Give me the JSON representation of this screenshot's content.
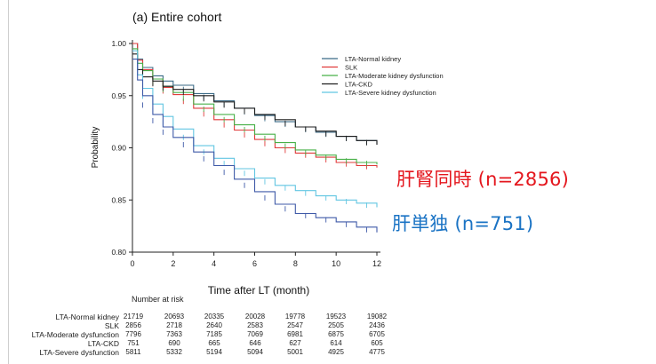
{
  "chart_data": {
    "type": "line",
    "subtype": "kaplan-meier",
    "title": "(a) Entire cohort",
    "xlabel": "Time after LT (month)",
    "ylabel": "Probability",
    "xlim": [
      0,
      12
    ],
    "ylim": [
      0.8,
      1.0
    ],
    "xticks": [
      "0",
      "2",
      "4",
      "6",
      "8",
      "10",
      "12"
    ],
    "yticks": [
      "0.80",
      "0.85",
      "0.90",
      "0.95",
      "1.00"
    ],
    "legend_position": "top-right",
    "series": [
      {
        "name": "LTA-Normal kidney",
        "color": "#3a6a86",
        "x": [
          0,
          0.25,
          0.5,
          1,
          1.5,
          2,
          3,
          4,
          5,
          6,
          7,
          8,
          9,
          10,
          11,
          12
        ],
        "y": [
          1.0,
          0.985,
          0.977,
          0.969,
          0.964,
          0.96,
          0.952,
          0.945,
          0.938,
          0.931,
          0.925,
          0.92,
          0.915,
          0.911,
          0.907,
          0.903
        ]
      },
      {
        "name": "SLK",
        "color": "#e03a3a",
        "x": [
          0,
          0.25,
          0.5,
          1,
          1.5,
          2,
          3,
          4,
          5,
          6,
          7,
          8,
          9,
          10,
          11,
          12
        ],
        "y": [
          1.0,
          0.984,
          0.975,
          0.966,
          0.958,
          0.951,
          0.938,
          0.927,
          0.917,
          0.908,
          0.9,
          0.895,
          0.891,
          0.886,
          0.883,
          0.881
        ]
      },
      {
        "name": "LTA-Moderate kidney dysfunction",
        "color": "#48b048",
        "x": [
          0,
          0.25,
          0.5,
          1,
          1.5,
          2,
          3,
          4,
          5,
          6,
          7,
          8,
          9,
          10,
          11,
          12
        ],
        "y": [
          0.995,
          0.981,
          0.974,
          0.966,
          0.959,
          0.953,
          0.942,
          0.932,
          0.922,
          0.913,
          0.905,
          0.898,
          0.893,
          0.889,
          0.886,
          0.884
        ]
      },
      {
        "name": "LTA-CKD",
        "color": "#1f1f1f",
        "x": [
          0,
          0.25,
          0.5,
          1,
          1.5,
          2,
          3,
          4,
          5,
          6,
          7,
          8,
          9,
          10,
          11,
          12
        ],
        "y": [
          0.99,
          0.975,
          0.968,
          0.964,
          0.959,
          0.956,
          0.95,
          0.944,
          0.938,
          0.932,
          0.927,
          0.92,
          0.916,
          0.911,
          0.907,
          0.903
        ]
      },
      {
        "name": "LTA-Severe kidney dysfunction",
        "color": "#62c6e2",
        "x": [
          0,
          0.25,
          0.5,
          1,
          1.5,
          2,
          3,
          4,
          5,
          6,
          7,
          8,
          9,
          10,
          11,
          12
        ],
        "y": [
          0.993,
          0.97,
          0.957,
          0.942,
          0.93,
          0.918,
          0.902,
          0.89,
          0.88,
          0.871,
          0.864,
          0.859,
          0.854,
          0.85,
          0.847,
          0.843
        ]
      },
      {
        "name": "",
        "color": "#3f5aa8",
        "x": [
          0,
          0.25,
          0.5,
          1,
          1.5,
          2,
          3,
          4,
          5,
          6,
          7,
          8,
          9,
          10,
          11,
          12
        ],
        "y": [
          0.985,
          0.965,
          0.95,
          0.932,
          0.92,
          0.91,
          0.896,
          0.883,
          0.87,
          0.858,
          0.846,
          0.837,
          0.833,
          0.829,
          0.824,
          0.819
        ]
      }
    ]
  },
  "risk_table": {
    "header": "Number at risk",
    "rows": [
      {
        "label": "LTA-Normal kidney",
        "values": [
          "21719",
          "20693",
          "20335",
          "20028",
          "19778",
          "19523",
          "19082"
        ]
      },
      {
        "label": "SLK",
        "values": [
          "2856",
          "2718",
          "2640",
          "2583",
          "2547",
          "2505",
          "2436"
        ]
      },
      {
        "label": "LTA-Moderate dysfunction",
        "values": [
          "7796",
          "7363",
          "7185",
          "7069",
          "6981",
          "6875",
          "6705"
        ]
      },
      {
        "label": "LTA-CKD",
        "values": [
          "751",
          "690",
          "665",
          "646",
          "627",
          "614",
          "605"
        ]
      },
      {
        "label": "LTA-Severe dysfunction",
        "values": [
          "5811",
          "5332",
          "5194",
          "5094",
          "5001",
          "4925",
          "4775"
        ]
      }
    ]
  },
  "annotations": {
    "slk_count": "肝腎同時 (n=2856)",
    "lta_count": "肝単独 (n=751)",
    "slk_color": "#e4161d",
    "lta_color": "#1a73c4"
  }
}
